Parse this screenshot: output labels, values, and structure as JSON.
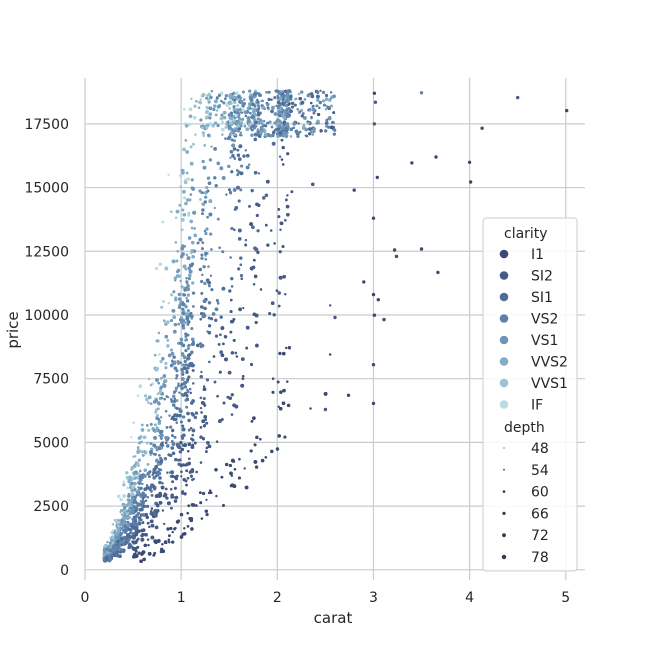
{
  "chart_data": {
    "type": "scatter",
    "title": "",
    "xlabel": "carat",
    "ylabel": "price",
    "xlim": [
      0,
      5.2
    ],
    "ylim": [
      -400,
      19300
    ],
    "x_ticks": [
      0,
      1,
      2,
      3,
      4,
      5
    ],
    "y_ticks": [
      0,
      2500,
      5000,
      7500,
      10000,
      12500,
      15000,
      17500
    ],
    "grid": true,
    "legend_position": "right",
    "hue": {
      "title": "clarity",
      "levels": [
        {
          "name": "I1",
          "color": "#3b4a73"
        },
        {
          "name": "SI2",
          "color": "#455a86"
        },
        {
          "name": "SI1",
          "color": "#4f6c97"
        },
        {
          "name": "VS2",
          "color": "#5d80a8"
        },
        {
          "name": "VS1",
          "color": "#6e95b7"
        },
        {
          "name": "VVS2",
          "color": "#83acc5"
        },
        {
          "name": "VVS1",
          "color": "#9cc3d2"
        },
        {
          "name": "IF",
          "color": "#b9dbe3"
        }
      ]
    },
    "size": {
      "title": "depth",
      "levels": [
        {
          "name": "48",
          "value": 48
        },
        {
          "name": "54",
          "value": 54
        },
        {
          "name": "60",
          "value": 60
        },
        {
          "name": "66",
          "value": 66
        },
        {
          "name": "72",
          "value": 72
        },
        {
          "name": "78",
          "value": 78
        }
      ]
    },
    "outliers": [
      {
        "x": 3.01,
        "y": 18700,
        "clarity": "I1"
      },
      {
        "x": 3.02,
        "y": 18350,
        "clarity": "SI2"
      },
      {
        "x": 3.5,
        "y": 18720,
        "clarity": "VS2"
      },
      {
        "x": 4.5,
        "y": 18530,
        "clarity": "SI2"
      },
      {
        "x": 5.01,
        "y": 18020,
        "clarity": "I1"
      },
      {
        "x": 4.13,
        "y": 17330,
        "clarity": "I1"
      },
      {
        "x": 3.65,
        "y": 16200,
        "clarity": "I1"
      },
      {
        "x": 3.4,
        "y": 15970,
        "clarity": "I1"
      },
      {
        "x": 4.0,
        "y": 15990,
        "clarity": "I1"
      },
      {
        "x": 4.01,
        "y": 15220,
        "clarity": "I1"
      },
      {
        "x": 3.04,
        "y": 15400,
        "clarity": "I1"
      },
      {
        "x": 3.22,
        "y": 12550,
        "clarity": "I1"
      },
      {
        "x": 3.24,
        "y": 12300,
        "clarity": "I1"
      },
      {
        "x": 3.5,
        "y": 12590,
        "clarity": "I1"
      },
      {
        "x": 3.67,
        "y": 11670,
        "clarity": "I1"
      },
      {
        "x": 3.0,
        "y": 10800,
        "clarity": "I1"
      },
      {
        "x": 3.05,
        "y": 10600,
        "clarity": "I1"
      },
      {
        "x": 3.01,
        "y": 9990,
        "clarity": "I1"
      },
      {
        "x": 3.11,
        "y": 9820,
        "clarity": "I1"
      },
      {
        "x": 3.0,
        "y": 8050,
        "clarity": "I1"
      },
      {
        "x": 3.0,
        "y": 6530,
        "clarity": "I1"
      },
      {
        "x": 2.74,
        "y": 6850,
        "clarity": "I1"
      },
      {
        "x": 2.5,
        "y": 6290,
        "clarity": "SI2"
      },
      {
        "x": 2.8,
        "y": 14900,
        "clarity": "I1"
      },
      {
        "x": 2.9,
        "y": 11300,
        "clarity": "I1"
      },
      {
        "x": 2.6,
        "y": 9900,
        "clarity": "SI2"
      },
      {
        "x": 3.0,
        "y": 13800,
        "clarity": "I1"
      },
      {
        "x": 3.01,
        "y": 17500,
        "clarity": "SI2"
      }
    ]
  }
}
